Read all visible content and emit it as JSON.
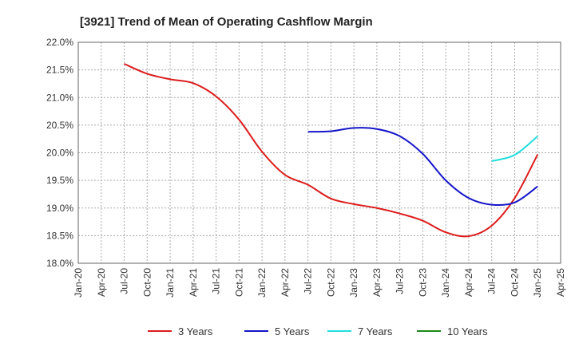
{
  "chart_data": {
    "type": "line",
    "title": "[3921]  Trend of Mean of Operating Cashflow Margin",
    "xlabel": "",
    "ylabel": "",
    "ylim": [
      18.0,
      22.0
    ],
    "yticks": [
      "18.0%",
      "18.5%",
      "19.0%",
      "19.5%",
      "20.0%",
      "20.5%",
      "21.0%",
      "21.5%",
      "22.0%"
    ],
    "yvalues": [
      18.0,
      18.5,
      19.0,
      19.5,
      20.0,
      20.5,
      21.0,
      21.5,
      22.0
    ],
    "xticks": [
      "Jan-20",
      "Apr-20",
      "Jul-20",
      "Oct-20",
      "Jan-21",
      "Apr-21",
      "Jul-21",
      "Oct-21",
      "Jan-22",
      "Apr-22",
      "Jul-22",
      "Oct-22",
      "Jan-23",
      "Apr-23",
      "Jul-23",
      "Oct-23",
      "Jan-24",
      "Apr-24",
      "Jul-24",
      "Oct-24",
      "Jan-25",
      "Apr-25"
    ],
    "grid": true,
    "legend_position": "bottom",
    "series": [
      {
        "name": "3 Years",
        "color": "#dd1c1c",
        "points": [
          [
            "Jul-20",
            21.61
          ],
          [
            "Oct-20",
            21.43
          ],
          [
            "Jan-21",
            21.33
          ],
          [
            "Apr-21",
            21.26
          ],
          [
            "Jul-21",
            21.02
          ],
          [
            "Oct-21",
            20.6
          ],
          [
            "Jan-22",
            20.02
          ],
          [
            "Apr-22",
            19.6
          ],
          [
            "Jul-22",
            19.42
          ],
          [
            "Oct-22",
            19.17
          ],
          [
            "Jan-23",
            19.07
          ],
          [
            "Apr-23",
            19.0
          ],
          [
            "Jul-23",
            18.9
          ],
          [
            "Oct-23",
            18.77
          ],
          [
            "Jan-24",
            18.56
          ],
          [
            "Apr-24",
            18.49
          ],
          [
            "Jul-24",
            18.68
          ],
          [
            "Oct-24",
            19.18
          ],
          [
            "Jan-25",
            19.97
          ]
        ]
      },
      {
        "name": "5 Years",
        "color": "#1515c8",
        "points": [
          [
            "Jul-22",
            20.38
          ],
          [
            "Oct-22",
            20.39
          ],
          [
            "Jan-23",
            20.45
          ],
          [
            "Apr-23",
            20.43
          ],
          [
            "Jul-23",
            20.3
          ],
          [
            "Oct-23",
            19.98
          ],
          [
            "Jan-24",
            19.5
          ],
          [
            "Apr-24",
            19.18
          ],
          [
            "Jul-24",
            19.06
          ],
          [
            "Oct-24",
            19.1
          ],
          [
            "Jan-25",
            19.39
          ]
        ]
      },
      {
        "name": "7 Years",
        "color": "#22dede",
        "points": [
          [
            "Jul-24",
            19.85
          ],
          [
            "Oct-24",
            19.96
          ],
          [
            "Jan-25",
            20.3
          ]
        ]
      },
      {
        "name": "10 Years",
        "color": "#1a8a1a",
        "points": []
      }
    ]
  }
}
